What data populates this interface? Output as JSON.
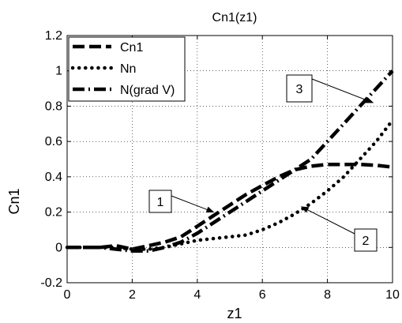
{
  "chart_data": {
    "type": "line",
    "title": "Cn1(z1)",
    "xlabel": "z1",
    "ylabel": "Cn1",
    "xlim": [
      0,
      10
    ],
    "ylim": [
      -0.2,
      1.2
    ],
    "xticks": [
      0,
      2,
      4,
      6,
      8,
      10
    ],
    "yticks": [
      -0.2,
      0,
      0.2,
      0.4,
      0.6,
      0.8,
      1,
      1.2
    ],
    "xtick_labels": [
      "0",
      "2",
      "4",
      "6",
      "8",
      "10"
    ],
    "ytick_labels": [
      "-0.2",
      "0",
      "0.2",
      "0.4",
      "0.6",
      "0.8",
      "1",
      "1.2"
    ],
    "grid": true,
    "legend_position": "top-left",
    "series": [
      {
        "name": "Cn1",
        "line_style": "dashed",
        "color": "#000000",
        "x": [
          0,
          0.5,
          1,
          1.5,
          2,
          2.5,
          3,
          3.5,
          4,
          4.5,
          5,
          5.5,
          6,
          6.5,
          7,
          7.5,
          8,
          8.5,
          9,
          9.5,
          10
        ],
        "y": [
          0,
          0,
          0,
          0.01,
          -0.01,
          0.01,
          0.03,
          0.06,
          0.12,
          0.18,
          0.24,
          0.3,
          0.35,
          0.4,
          0.44,
          0.46,
          0.47,
          0.47,
          0.47,
          0.465,
          0.455
        ]
      },
      {
        "name": "Nn",
        "line_style": "dotted",
        "color": "#000000",
        "x": [
          0,
          0.5,
          1,
          1.5,
          2,
          2.5,
          3,
          3.5,
          4,
          4.5,
          5,
          5.5,
          6,
          6.5,
          7,
          7.5,
          8,
          8.5,
          9,
          9.5,
          10
        ],
        "y": [
          0,
          0,
          0,
          0,
          -0.01,
          -0.01,
          0,
          0.02,
          0.04,
          0.05,
          0.06,
          0.07,
          0.1,
          0.14,
          0.19,
          0.25,
          0.32,
          0.4,
          0.5,
          0.6,
          0.72
        ]
      },
      {
        "name": "N(grad V)",
        "line_style": "dash-dot",
        "color": "#000000",
        "x": [
          0,
          0.5,
          1,
          1.5,
          2,
          2.5,
          3,
          3.5,
          4,
          4.5,
          5,
          5.5,
          6,
          6.5,
          7,
          7.5,
          8,
          8.5,
          9,
          9.5,
          10
        ],
        "y": [
          0,
          0,
          0,
          -0.01,
          -0.02,
          -0.02,
          0,
          0.03,
          0.08,
          0.14,
          0.2,
          0.26,
          0.32,
          0.38,
          0.44,
          0.5,
          0.6,
          0.7,
          0.8,
          0.9,
          1.0
        ]
      }
    ],
    "annotations": [
      {
        "label": "1",
        "target": [
          4.5,
          0.2
        ]
      },
      {
        "label": "2",
        "target": [
          7.2,
          0.23
        ]
      },
      {
        "label": "3",
        "target": [
          9.4,
          0.82
        ]
      }
    ]
  }
}
